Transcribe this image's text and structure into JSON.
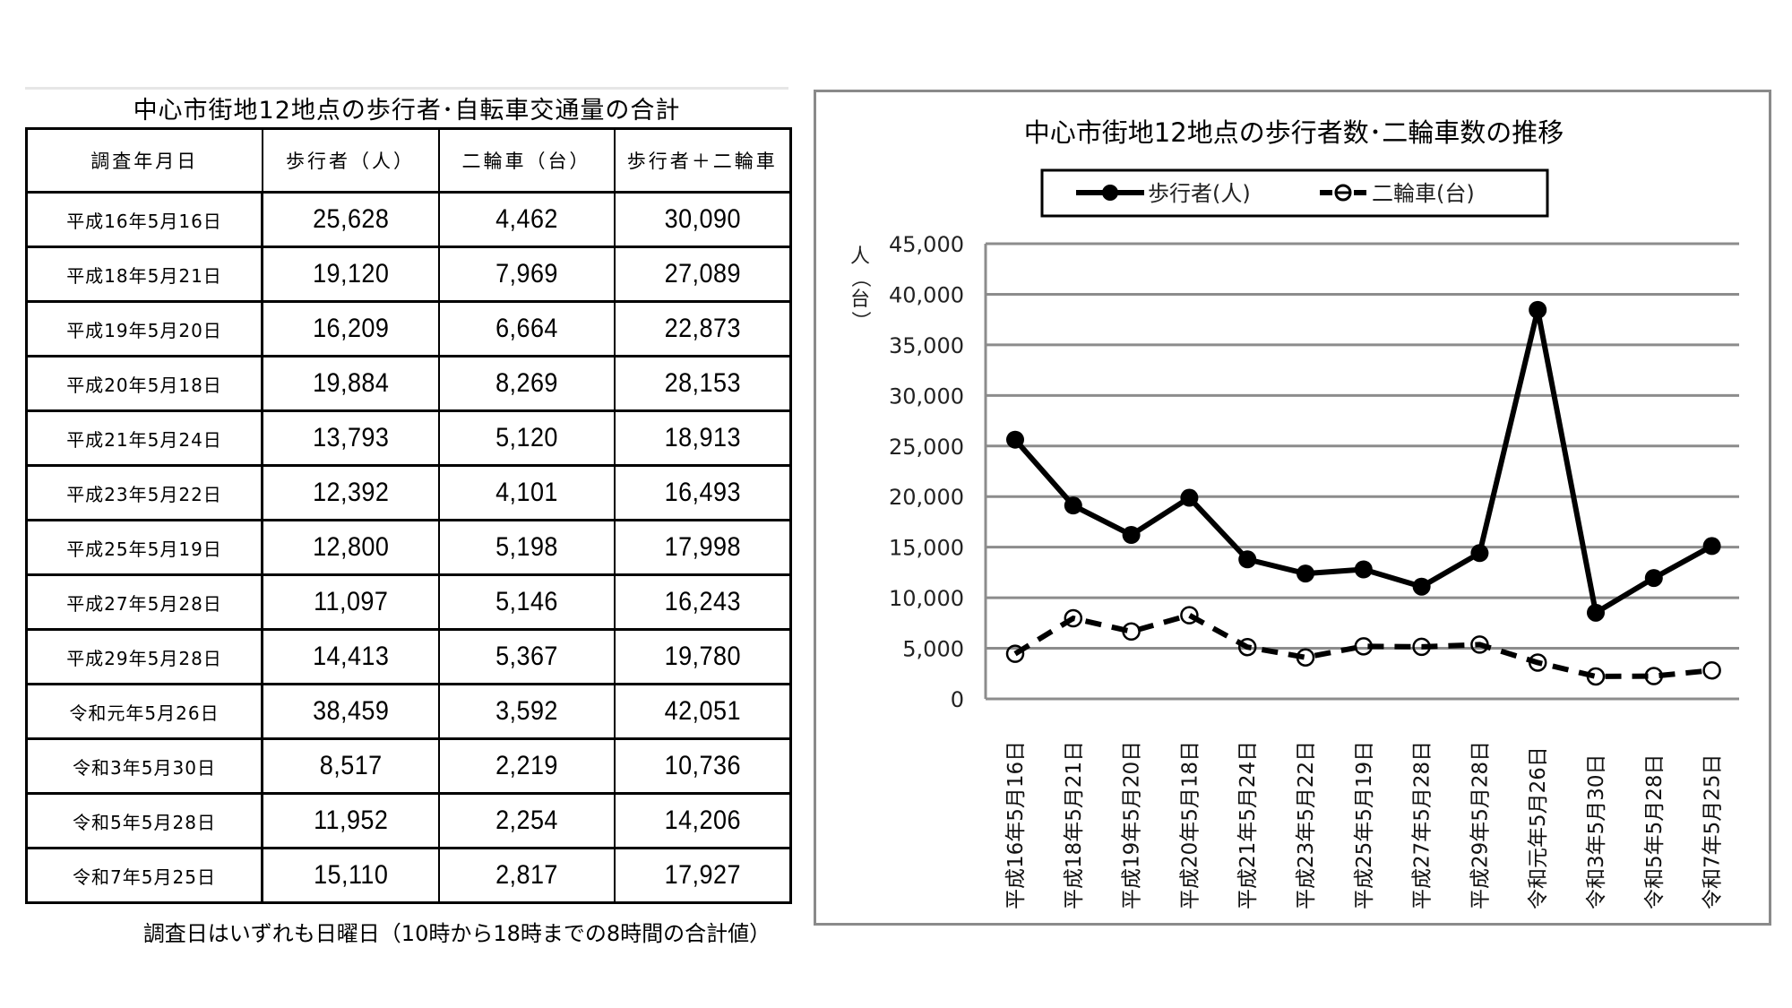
{
  "table": {
    "title": "中心市街地12地点の歩行者･自転車交通量の合計",
    "headers": [
      "調査年月日",
      "歩行者（人）",
      "二輪車（台）",
      "歩行者＋二輪車"
    ],
    "rows": [
      {
        "date": "平成16年5月16日",
        "pedestrians": "25,628",
        "two_wheelers": "4,462",
        "total": "30,090"
      },
      {
        "date": "平成18年5月21日",
        "pedestrians": "19,120",
        "two_wheelers": "7,969",
        "total": "27,089"
      },
      {
        "date": "平成19年5月20日",
        "pedestrians": "16,209",
        "two_wheelers": "6,664",
        "total": "22,873"
      },
      {
        "date": "平成20年5月18日",
        "pedestrians": "19,884",
        "two_wheelers": "8,269",
        "total": "28,153"
      },
      {
        "date": "平成21年5月24日",
        "pedestrians": "13,793",
        "two_wheelers": "5,120",
        "total": "18,913"
      },
      {
        "date": "平成23年5月22日",
        "pedestrians": "12,392",
        "two_wheelers": "4,101",
        "total": "16,493"
      },
      {
        "date": "平成25年5月19日",
        "pedestrians": "12,800",
        "two_wheelers": "5,198",
        "total": "17,998"
      },
      {
        "date": "平成27年5月28日",
        "pedestrians": "11,097",
        "two_wheelers": "5,146",
        "total": "16,243"
      },
      {
        "date": "平成29年5月28日",
        "pedestrians": "14,413",
        "two_wheelers": "5,367",
        "total": "19,780"
      },
      {
        "date": "令和元年5月26日",
        "pedestrians": "38,459",
        "two_wheelers": "3,592",
        "total": "42,051"
      },
      {
        "date": "令和3年5月30日",
        "pedestrians": "8,517",
        "two_wheelers": "2,219",
        "total": "10,736"
      },
      {
        "date": "令和5年5月28日",
        "pedestrians": "11,952",
        "two_wheelers": "2,254",
        "total": "14,206"
      },
      {
        "date": "令和7年5月25日",
        "pedestrians": "15,110",
        "two_wheelers": "2,817",
        "total": "17,927"
      }
    ],
    "footnote": "調査日はいずれも日曜日（10時から18時までの8時間の合計値）"
  },
  "chart_data": {
    "type": "line",
    "title": "中心市街地12地点の歩行者数･二輪車数の推移",
    "xlabel": "",
    "ylabel": "人（台）",
    "ylim": [
      0,
      45000
    ],
    "yticks": [
      0,
      5000,
      10000,
      15000,
      20000,
      25000,
      30000,
      35000,
      40000,
      45000
    ],
    "ytick_labels": [
      "0",
      "5,000",
      "10,000",
      "15,000",
      "20,000",
      "25,000",
      "30,000",
      "35,000",
      "40,000",
      "45,000"
    ],
    "grid": true,
    "legend_position": "top",
    "categories": [
      "平成16年5月16日",
      "平成18年5月21日",
      "平成19年5月20日",
      "平成20年5月18日",
      "平成21年5月24日",
      "平成23年5月22日",
      "平成25年5月19日",
      "平成27年5月28日",
      "平成29年5月28日",
      "令和元年5月26日",
      "令和3年5月30日",
      "令和5年5月28日",
      "令和7年5月25日"
    ],
    "series": [
      {
        "name": "歩行者(人)",
        "style": "solid",
        "marker": "filled-circle",
        "color": "#000000",
        "values": [
          25628,
          19120,
          16209,
          19884,
          13793,
          12392,
          12800,
          11097,
          14413,
          38459,
          8517,
          11952,
          15110
        ]
      },
      {
        "name": "二輪車(台)",
        "style": "dashed",
        "marker": "open-circle-barred",
        "color": "#000000",
        "values": [
          4462,
          7969,
          6664,
          8269,
          5120,
          4101,
          5198,
          5146,
          5367,
          3592,
          2219,
          2254,
          2817
        ]
      }
    ]
  },
  "colors": {
    "frame_border": "#8a8a8a",
    "gridline": "#8c8c8c",
    "line": "#000000",
    "background": "#ffffff"
  }
}
